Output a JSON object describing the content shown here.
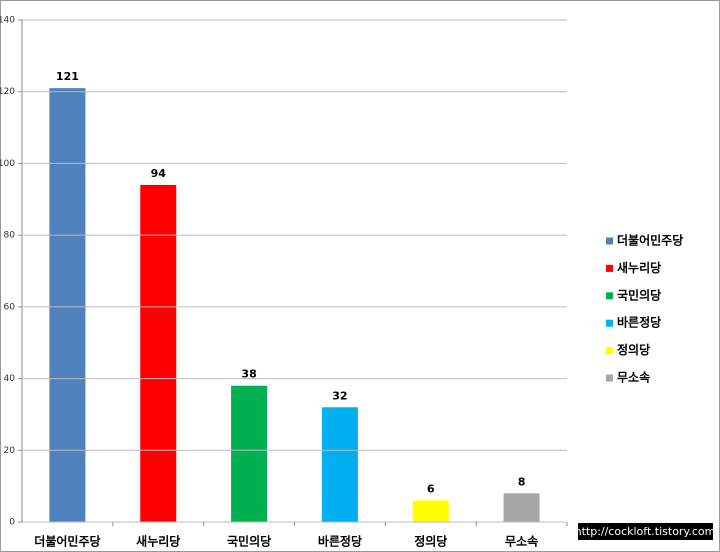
{
  "chart_data": {
    "type": "bar",
    "categories": [
      "더불어민주당",
      "새누리당",
      "국민의당",
      "바른정당",
      "정의당",
      "무소속"
    ],
    "values": [
      121,
      94,
      38,
      32,
      6,
      8
    ],
    "colors": [
      "#4f81bd",
      "#ff0000",
      "#00b050",
      "#00b0f0",
      "#ffff00",
      "#a6a6a6"
    ],
    "ylim": [
      0,
      140
    ],
    "yticks": [
      0,
      20,
      40,
      60,
      80,
      100,
      120,
      140
    ],
    "grid": true,
    "legend": "right",
    "watermark": "http://cockloft.tistory.com"
  }
}
